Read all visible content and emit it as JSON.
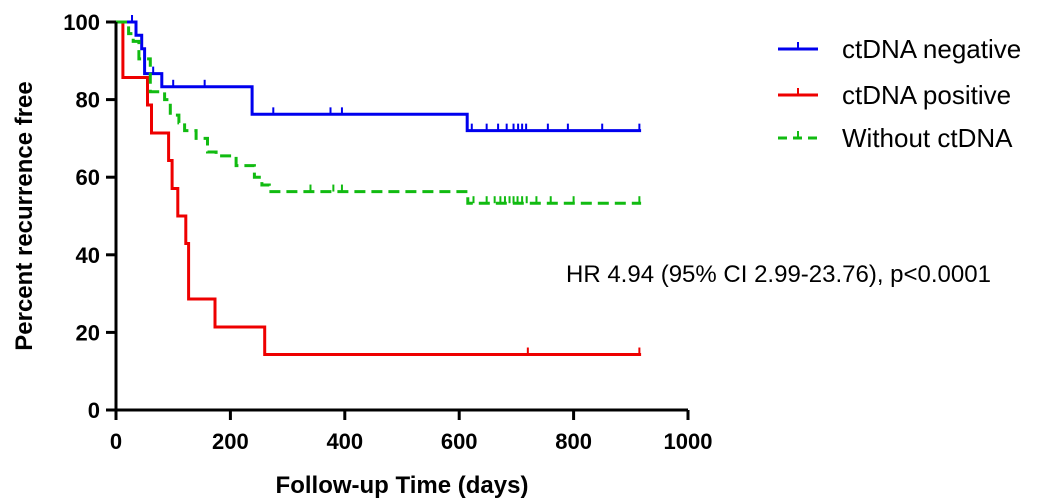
{
  "chart_data": {
    "type": "line",
    "xlabel": "Follow-up Time (days)",
    "ylabel": "Percent recurrence free",
    "xlim": [
      0,
      1000
    ],
    "ylim": [
      0,
      100
    ],
    "x_ticks": [
      0,
      200,
      400,
      600,
      800,
      1000
    ],
    "y_ticks": [
      0,
      20,
      40,
      60,
      80,
      100
    ],
    "grid": false,
    "legend_position": "top-right",
    "annotation": "HR 4.94 (95% CI 2.99-23.76), p<0.0001",
    "series": [
      {
        "name": "ctDNA negative",
        "color": "#0000ee",
        "style": "solid",
        "steps": [
          [
            0,
            100
          ],
          [
            28,
            100
          ],
          [
            35,
            96.6
          ],
          [
            45,
            93.1
          ],
          [
            50,
            86.7
          ],
          [
            80,
            83.3
          ],
          [
            222,
            83.3
          ],
          [
            238,
            76.2
          ],
          [
            612,
            76.2
          ],
          [
            614,
            72.0
          ],
          [
            918,
            72.0
          ]
        ],
        "censored": [
          [
            28,
            100
          ],
          [
            65,
            86.7
          ],
          [
            100,
            83.3
          ],
          [
            155,
            83.3
          ],
          [
            275,
            76.2
          ],
          [
            375,
            76.2
          ],
          [
            395,
            76.2
          ],
          [
            622,
            72.0
          ],
          [
            648,
            72.0
          ],
          [
            668,
            72.0
          ],
          [
            683,
            72.0
          ],
          [
            695,
            72.0
          ],
          [
            703,
            72.0
          ],
          [
            710,
            72.0
          ],
          [
            717,
            72.0
          ],
          [
            755,
            72.0
          ],
          [
            790,
            72.0
          ],
          [
            850,
            72.0
          ],
          [
            915,
            72.0
          ]
        ]
      },
      {
        "name": "ctDNA positive",
        "color": "#ee0000",
        "style": "solid",
        "steps": [
          [
            0,
            100
          ],
          [
            12,
            85.7
          ],
          [
            50,
            85.7
          ],
          [
            55,
            78.6
          ],
          [
            62,
            71.4
          ],
          [
            90,
            71.4
          ],
          [
            92,
            64.3
          ],
          [
            98,
            57.1
          ],
          [
            108,
            50.0
          ],
          [
            122,
            42.9
          ],
          [
            127,
            28.6
          ],
          [
            170,
            28.6
          ],
          [
            173,
            21.4
          ],
          [
            258,
            21.4
          ],
          [
            260,
            14.3
          ],
          [
            918,
            14.3
          ]
        ],
        "censored": [
          [
            720,
            14.3
          ],
          [
            915,
            14.3
          ]
        ]
      },
      {
        "name": "Without ctDNA",
        "color": "#11bb11",
        "style": "dashed",
        "steps": [
          [
            0,
            100
          ],
          [
            22,
            97.0
          ],
          [
            30,
            95.0
          ],
          [
            40,
            90.5
          ],
          [
            60,
            82.0
          ],
          [
            85,
            80.0
          ],
          [
            95,
            76.0
          ],
          [
            110,
            74.0
          ],
          [
            120,
            72.0
          ],
          [
            140,
            70.0
          ],
          [
            160,
            66.5
          ],
          [
            175,
            65.5
          ],
          [
            205,
            65.5
          ],
          [
            210,
            63.0
          ],
          [
            238,
            63.0
          ],
          [
            242,
            60.0
          ],
          [
            255,
            58.0
          ],
          [
            268,
            56.3
          ],
          [
            612,
            56.3
          ],
          [
            615,
            53.3
          ],
          [
            918,
            53.3
          ]
        ],
        "censored": [
          [
            340,
            56.3
          ],
          [
            380,
            56.3
          ],
          [
            395,
            56.3
          ],
          [
            625,
            53.3
          ],
          [
            648,
            53.3
          ],
          [
            662,
            53.3
          ],
          [
            672,
            53.3
          ],
          [
            680,
            53.3
          ],
          [
            688,
            53.3
          ],
          [
            695,
            53.3
          ],
          [
            702,
            53.3
          ],
          [
            710,
            53.3
          ],
          [
            718,
            53.3
          ],
          [
            735,
            53.3
          ],
          [
            760,
            53.3
          ],
          [
            800,
            53.3
          ],
          [
            915,
            53.3
          ]
        ]
      }
    ]
  }
}
